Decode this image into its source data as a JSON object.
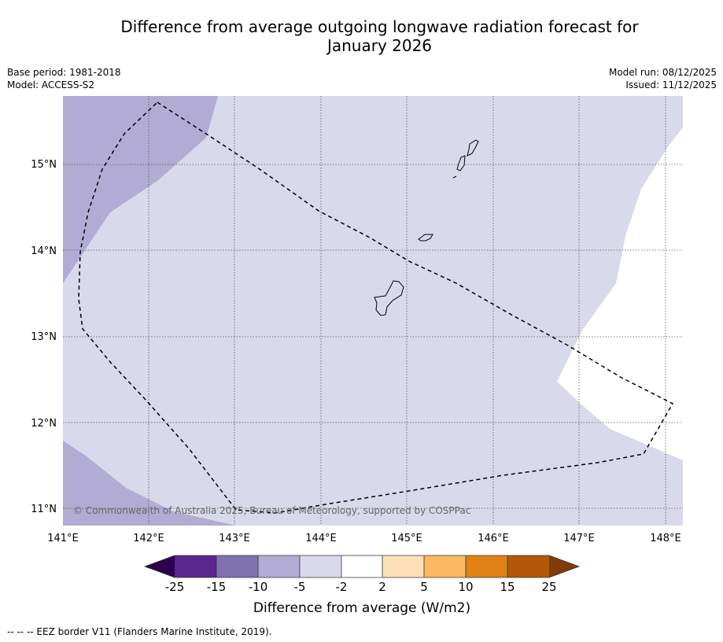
{
  "title": {
    "line1": "Difference from average outgoing longwave radiation forecast for",
    "line2": "January 2026"
  },
  "meta": {
    "base_period": "Base period: 1981-2018",
    "model": "Model: ACCESS-S2",
    "model_run": "Model run: 08/12/2025",
    "issued": "Issued: 11/12/2025"
  },
  "map": {
    "lat_labels": [
      "15°N",
      "14°N",
      "13°N",
      "12°N",
      "11°N"
    ],
    "lon_labels": [
      "141°E",
      "142°E",
      "143°E",
      "144°E",
      "145°E",
      "146°E",
      "147°E",
      "148°E"
    ],
    "copyright": "© Commonwealth of Australia 2025, Bureau of Meteorology, supported by COSPPac"
  },
  "colorbar": {
    "label": "Difference from average (W/m2)",
    "ticks": [
      "-25",
      "-15",
      "-10",
      "-5",
      "-2",
      "2",
      "5",
      "10",
      "15",
      "25"
    ],
    "colors": {
      "under": "#2d004b",
      "c1": "#5a2690",
      "c2": "#8071b1",
      "c3": "#b2abd3",
      "c4": "#d8d9ea",
      "c5": "#ffffff",
      "c6": "#fee0b6",
      "c7": "#fdb863",
      "c8": "#e08214",
      "c9": "#b35806",
      "over": "#7f3b08"
    }
  },
  "footer": {
    "legend_line": "--  --  -- EEZ border V11 (Flanders Marine Institute, 2019)."
  }
}
